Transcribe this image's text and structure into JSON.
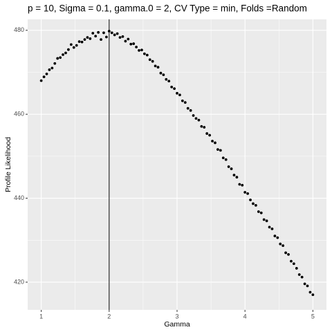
{
  "chart_data": {
    "type": "scatter",
    "title": "p = 10, Sigma = 0.1, gamma.0 = 2, CV Type = min, Folds =Random",
    "x_label": "Gamma",
    "y_label": "Profile Likelihood",
    "color": "#000000",
    "vline": 2,
    "xlim": [
      0.8,
      5.2
    ],
    "xticks": [
      1,
      2,
      3,
      4,
      5
    ],
    "x_minor_ticks": [
      1.5,
      2.5,
      3.5,
      4.5
    ],
    "ylim": [
      413.4,
      482.6
    ],
    "yticks": [
      420,
      440,
      460,
      480
    ],
    "y_minor_ticks": [
      430,
      450,
      470
    ],
    "grid": true,
    "x": [
      1.0,
      1.04,
      1.08,
      1.12,
      1.16,
      1.2,
      1.24,
      1.28,
      1.32,
      1.36,
      1.4,
      1.44,
      1.48,
      1.52,
      1.56,
      1.6,
      1.64,
      1.68,
      1.72,
      1.76,
      1.8,
      1.84,
      1.88,
      1.92,
      1.96,
      2.0,
      2.04,
      2.08,
      2.12,
      2.16,
      2.2,
      2.24,
      2.28,
      2.32,
      2.36,
      2.4,
      2.44,
      2.48,
      2.52,
      2.56,
      2.6,
      2.64,
      2.68,
      2.72,
      2.76,
      2.8,
      2.84,
      2.88,
      2.92,
      2.96,
      3.0,
      3.04,
      3.08,
      3.12,
      3.16,
      3.2,
      3.24,
      3.28,
      3.32,
      3.36,
      3.4,
      3.44,
      3.48,
      3.52,
      3.56,
      3.6,
      3.64,
      3.68,
      3.72,
      3.76,
      3.8,
      3.84,
      3.88,
      3.92,
      3.96,
      4.0,
      4.04,
      4.08,
      4.12,
      4.16,
      4.2,
      4.24,
      4.28,
      4.32,
      4.36,
      4.4,
      4.44,
      4.48,
      4.52,
      4.56,
      4.6,
      4.64,
      4.68,
      4.72,
      4.76,
      4.8,
      4.84,
      4.88,
      4.92,
      4.96,
      5.0
    ],
    "values": [
      468.0,
      468.9,
      469.6,
      470.6,
      471.0,
      472.1,
      473.3,
      473.5,
      474.2,
      474.6,
      475.4,
      476.6,
      475.9,
      476.4,
      477.3,
      477.2,
      477.8,
      478.3,
      478.0,
      479.3,
      478.6,
      479.5,
      477.8,
      479.4,
      478.4,
      479.8,
      479.4,
      478.9,
      479.2,
      478.3,
      478.5,
      477.4,
      477.9,
      476.7,
      476.8,
      476.0,
      475.2,
      475.3,
      474.4,
      474.1,
      473.0,
      472.6,
      471.5,
      471.2,
      469.8,
      469.4,
      468.3,
      467.9,
      466.5,
      466.1,
      465.0,
      464.6,
      463.2,
      462.8,
      461.4,
      460.9,
      459.7,
      459.0,
      458.6,
      457.1,
      456.9,
      455.4,
      455.0,
      453.6,
      453.2,
      451.6,
      451.4,
      449.6,
      449.2,
      447.5,
      447.0,
      445.5,
      445.0,
      443.3,
      443.1,
      441.4,
      441.1,
      439.6,
      438.7,
      438.3,
      436.8,
      436.5,
      434.9,
      434.6,
      433.1,
      432.7,
      431.0,
      430.6,
      429.1,
      428.7,
      427.0,
      426.6,
      425.0,
      424.4,
      423.3,
      421.8,
      421.2,
      419.6,
      419.1,
      417.6,
      417.0
    ]
  }
}
